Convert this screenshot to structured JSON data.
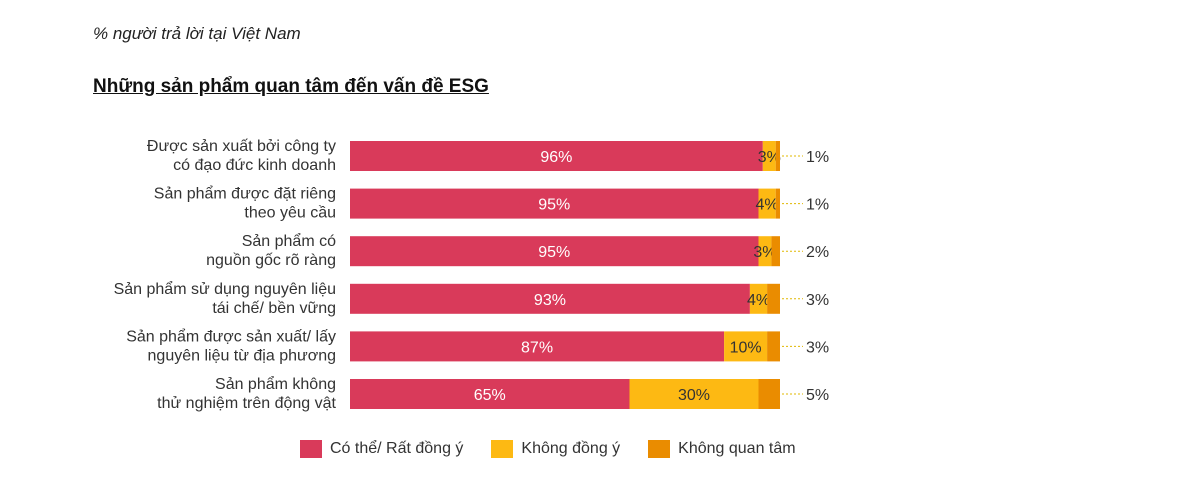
{
  "subtitle": "% người trả lời tại Việt Nam",
  "title": "Những sản phẩm quan tâm đến vấn đề ESG",
  "chart_data": {
    "type": "bar",
    "orientation": "horizontal",
    "stacked": true,
    "categories": [
      [
        "Được sản xuất bởi công ty",
        "có đạo đức kinh doanh"
      ],
      [
        "Sản phẩm được đặt riêng",
        "theo yêu cầu"
      ],
      [
        "Sản phẩm có",
        "nguồn gốc rõ ràng"
      ],
      [
        "Sản phẩm sử dụng nguyên liệu",
        "tái chế/ bền vững"
      ],
      [
        "Sản phẩm được sản xuất/ lấy",
        "nguyên liệu từ địa phương"
      ],
      [
        "Sản phẩm không",
        "thử nghiệm trên động vật"
      ]
    ],
    "series": [
      {
        "name": "Có thể/ Rất đồng ý",
        "color": "#d93a5a",
        "values": [
          96,
          95,
          95,
          93,
          87,
          65
        ],
        "labels": [
          "96%",
          "95%",
          "95%",
          "93%",
          "87%",
          "65%"
        ]
      },
      {
        "name": "Không đồng ý",
        "color": "#fdb913",
        "values": [
          3,
          4,
          3,
          4,
          10,
          30
        ],
        "labels": [
          "3%",
          "4%",
          "3%",
          "4%",
          "10%",
          "30%"
        ]
      },
      {
        "name": "Không quan tâm",
        "color": "#ea8c00",
        "values": [
          1,
          1,
          2,
          3,
          3,
          5
        ],
        "labels": [
          "1%",
          "1%",
          "2%",
          "3%",
          "3%",
          "5%"
        ]
      }
    ],
    "xlim": [
      0,
      100
    ],
    "grid": false,
    "legend_position": "bottom"
  }
}
